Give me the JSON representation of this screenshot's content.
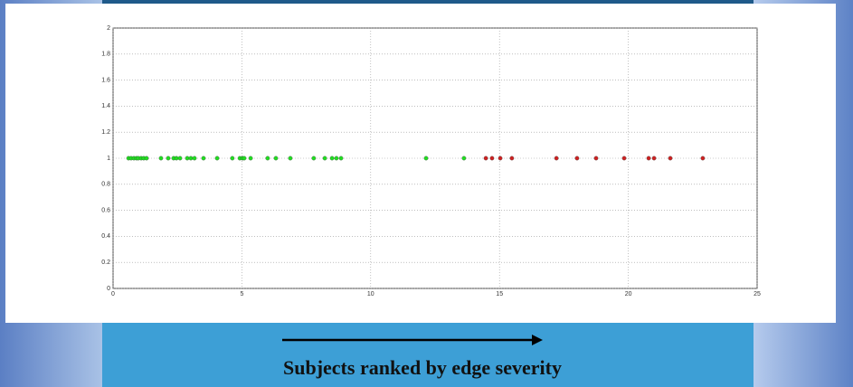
{
  "chart_data": {
    "type": "scatter",
    "xlabel": "Subjects ranked by edge severity",
    "xlim": [
      0,
      25
    ],
    "xticks": [
      0,
      5,
      10,
      15,
      20,
      25
    ],
    "ylim": [
      0,
      2
    ],
    "yticks": [
      0,
      0.2,
      0.4,
      0.6,
      0.8,
      1,
      1.2,
      1.4,
      1.6,
      1.8,
      2
    ],
    "grid": true,
    "series": [
      {
        "color": "#22dd22",
        "x": [
          0.6,
          0.7,
          0.81,
          0.91,
          0.98,
          1.09,
          1.19,
          1.3,
          1.86,
          2.14,
          2.35,
          2.46,
          2.6,
          2.88,
          3.02,
          3.16,
          3.51,
          4.04,
          4.63,
          4.92,
          5.02,
          5.09,
          5.34,
          6.0,
          6.32,
          6.88,
          7.79,
          8.22,
          8.5,
          8.67,
          8.85,
          12.15,
          13.62
        ],
        "values": [
          1,
          1,
          1,
          1,
          1,
          1,
          1,
          1,
          1,
          1,
          1,
          1,
          1,
          1,
          1,
          1,
          1,
          1,
          1,
          1,
          1,
          1,
          1,
          1,
          1,
          1,
          1,
          1,
          1,
          1,
          1,
          1,
          1
        ]
      },
      {
        "color": "#cc2222",
        "x": [
          14.47,
          14.71,
          15.03,
          15.48,
          17.21,
          18.01,
          18.75,
          19.84,
          20.79,
          21.0,
          21.63,
          22.89
        ],
        "values": [
          1,
          1,
          1,
          1,
          1,
          1,
          1,
          1,
          1,
          1,
          1,
          1
        ]
      }
    ]
  }
}
